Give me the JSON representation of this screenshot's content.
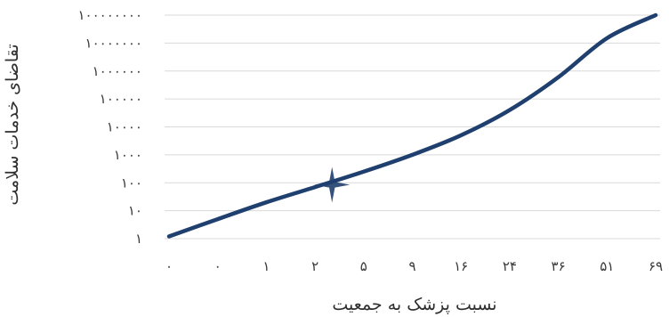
{
  "chart_data": {
    "type": "line",
    "xlabel": "نسبت پزشک به جمعیت",
    "ylabel": "تقاضای خدمات سلامت",
    "x_tick_labels": [
      "۰",
      "۰",
      "۱",
      "۲",
      "۵",
      "۹",
      "۱۶",
      "۲۴",
      "۳۶",
      "۵۱",
      "۶۹"
    ],
    "y_tick_labels": [
      "۱",
      "۱۰",
      "۱۰۰",
      "۱۰۰۰",
      "۱۰۰۰۰",
      "۱۰۰۰۰۰",
      "۱۰۰۰۰۰۰",
      "۱۰۰۰۰۰۰۰",
      "۱۰۰۰۰۰۰۰۰"
    ],
    "y_scale": "log",
    "ylim": [
      1,
      100000000
    ],
    "grid": true,
    "line_color": "#1f3f6e",
    "marker": {
      "label": "",
      "x_index": 3.35,
      "y": 85,
      "shape": "four-point-star",
      "color": "#1f3f6e"
    },
    "series": [
      {
        "name": "",
        "x_index": [
          0,
          1,
          2,
          3,
          4,
          5,
          6,
          7,
          8,
          9,
          10
        ],
        "y": [
          1.2,
          5,
          20,
          70,
          250,
          1000,
          5000,
          40000,
          600000,
          15000000,
          100000000
        ]
      }
    ]
  }
}
